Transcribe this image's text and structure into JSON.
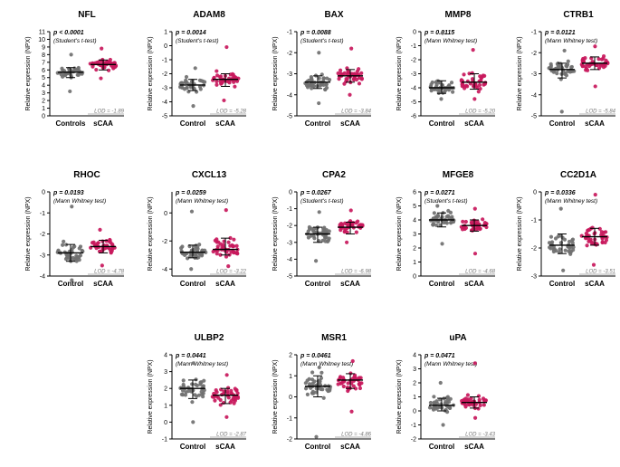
{
  "figure": {
    "ylabel": "Relative expression (NPX)",
    "group_colors": {
      "control": "#707070",
      "scaa": "#c8185c"
    }
  },
  "chart_data": [
    {
      "type": "scatter",
      "title": "NFL",
      "p_value": "p < 0.0001",
      "test": "(Student's t-test)",
      "categories": [
        "Controls",
        "sCAA"
      ],
      "ylabel": "Relative expression (NPX)",
      "ylim": [
        0,
        11
      ],
      "yticks": [
        0,
        1,
        2,
        3,
        4,
        5,
        6,
        7,
        8,
        9,
        10,
        11
      ],
      "lod_label": "LOD = -1.89",
      "series": [
        {
          "name": "Controls",
          "median": 5.7,
          "q1": 5.0,
          "q3": 6.3,
          "min": 3.2,
          "max": 8.0
        },
        {
          "name": "sCAA",
          "median": 6.7,
          "q1": 6.0,
          "q3": 7.3,
          "min": 4.9,
          "max": 8.8
        }
      ]
    },
    {
      "type": "scatter",
      "title": "ADAM8",
      "p_value": "p = 0.0014",
      "test": "(Student's t-test)",
      "categories": [
        "Control",
        "sCAA"
      ],
      "ylabel": "Relative expression (NPX)",
      "ylim": [
        -5,
        1
      ],
      "yticks": [
        -5,
        -4,
        -3,
        -2,
        -1,
        0,
        1
      ],
      "lod_label": "LOD = -5.28",
      "series": [
        {
          "name": "Control",
          "median": -2.8,
          "q1": -3.2,
          "q3": -2.4,
          "min": -4.3,
          "max": -1.6
        },
        {
          "name": "sCAA",
          "median": -2.4,
          "q1": -2.9,
          "q3": -2.0,
          "min": -3.9,
          "max": -0.1
        }
      ]
    },
    {
      "type": "scatter",
      "title": "BAX",
      "p_value": "p = 0.0088",
      "test": "(Student's t-test)",
      "categories": [
        "Control",
        "sCAA"
      ],
      "ylabel": "Relative expression (NPX)",
      "ylim": [
        -5,
        -1
      ],
      "yticks": [
        -5,
        -4,
        -3,
        -2,
        -1
      ],
      "lod_label": "LOD = -3.84",
      "series": [
        {
          "name": "Control",
          "median": -3.4,
          "q1": -3.7,
          "q3": -3.1,
          "min": -4.4,
          "max": -2.0
        },
        {
          "name": "sCAA",
          "median": -3.1,
          "q1": -3.4,
          "q3": -2.8,
          "min": -4.0,
          "max": -1.8
        }
      ]
    },
    {
      "type": "scatter",
      "title": "MMP8",
      "p_value": "p = 0.0115",
      "test": "(Mann Whitney test)",
      "categories": [
        "Control",
        "sCAA"
      ],
      "ylabel": "Relative expression (NPX)",
      "ylim": [
        -6,
        0
      ],
      "yticks": [
        -6,
        -5,
        -4,
        -3,
        -2,
        -1,
        0
      ],
      "lod_label": "LOD = -5.20",
      "series": [
        {
          "name": "Control",
          "median": -4.0,
          "q1": -4.4,
          "q3": -3.5,
          "min": -4.8,
          "max": -0.1
        },
        {
          "name": "sCAA",
          "median": -3.6,
          "q1": -4.1,
          "q3": -3.0,
          "min": -4.8,
          "max": -1.3
        }
      ]
    },
    {
      "type": "scatter",
      "title": "CTRB1",
      "p_value": "p = 0.0121",
      "test": "(Mann Whitney test)",
      "categories": [
        "Control",
        "sCAA"
      ],
      "ylabel": "Relative expression (NPX)",
      "ylim": [
        -5,
        -1
      ],
      "yticks": [
        -5,
        -4,
        -3,
        -2,
        -1
      ],
      "lod_label": "LOD = -5.84",
      "series": [
        {
          "name": "Control",
          "median": -2.8,
          "q1": -3.2,
          "q3": -2.5,
          "min": -4.8,
          "max": -1.9
        },
        {
          "name": "sCAA",
          "median": -2.5,
          "q1": -2.8,
          "q3": -2.2,
          "min": -3.6,
          "max": -1.7
        }
      ]
    },
    {
      "type": "scatter",
      "title": "RHOC",
      "p_value": "p = 0.0193",
      "test": "(Mann Whitney test)",
      "categories": [
        "Control",
        "sCAA"
      ],
      "ylabel": "Relative expression (NPX)",
      "ylim": [
        -4,
        0
      ],
      "yticks": [
        -4,
        -3,
        -2,
        -1,
        0
      ],
      "lod_label": "LOD = -4.78",
      "series": [
        {
          "name": "Control",
          "median": -2.9,
          "q1": -3.3,
          "q3": -2.5,
          "min": -4.2,
          "max": -0.7
        },
        {
          "name": "sCAA",
          "median": -2.6,
          "q1": -2.9,
          "q3": -2.3,
          "min": -3.5,
          "max": -1.8
        }
      ]
    },
    {
      "type": "scatter",
      "title": "CXCL13",
      "p_value": "p = 0.0259",
      "test": "(Mann Whitney test)",
      "categories": [
        "Control",
        "sCAA"
      ],
      "ylabel": "Relative expression (NPX)",
      "ylim": [
        -4.5,
        1.5
      ],
      "yticks": [
        -4,
        -2,
        0
      ],
      "lod_label": "LOD = -3.22",
      "series": [
        {
          "name": "Control",
          "median": -2.8,
          "q1": -3.2,
          "q3": -2.3,
          "min": -4.0,
          "max": 0.1
        },
        {
          "name": "sCAA",
          "median": -2.6,
          "q1": -3.0,
          "q3": -1.8,
          "min": -3.8,
          "max": 0.2
        }
      ]
    },
    {
      "type": "scatter",
      "title": "CPA2",
      "p_value": "p = 0.0267",
      "test": "(Student's t-test)",
      "categories": [
        "Control",
        "sCAA"
      ],
      "ylabel": "Relative expression (NPX)",
      "ylim": [
        -5,
        0
      ],
      "yticks": [
        -5,
        -4,
        -3,
        -2,
        -1,
        0
      ],
      "lod_label": "LOD = -6.98",
      "series": [
        {
          "name": "Control",
          "median": -2.5,
          "q1": -3.0,
          "q3": -2.1,
          "min": -4.1,
          "max": -1.2
        },
        {
          "name": "sCAA",
          "median": -2.1,
          "q1": -2.5,
          "q3": -1.8,
          "min": -3.0,
          "max": -1.1
        }
      ]
    },
    {
      "type": "scatter",
      "title": "MFGE8",
      "p_value": "p = 0.0271",
      "test": "(Student's t-test)",
      "categories": [
        "Control",
        "sCAA"
      ],
      "ylabel": "Relative expression (NPX)",
      "ylim": [
        0,
        6
      ],
      "yticks": [
        0,
        1,
        2,
        3,
        4,
        5,
        6
      ],
      "lod_label": "LOD = -4.68",
      "series": [
        {
          "name": "Control",
          "median": 4.0,
          "q1": 3.5,
          "q3": 4.5,
          "min": 2.3,
          "max": 5.0
        },
        {
          "name": "sCAA",
          "median": 3.6,
          "q1": 3.2,
          "q3": 4.0,
          "min": 1.6,
          "max": 4.8
        }
      ]
    },
    {
      "type": "scatter",
      "title": "CC2D1A",
      "p_value": "p = 0.0336",
      "test": "(Mann Whitney test)",
      "categories": [
        "Control",
        "sCAA"
      ],
      "ylabel": "Relative expression (NPX)",
      "ylim": [
        -3,
        0
      ],
      "yticks": [
        -3,
        -2,
        -1,
        0
      ],
      "lod_label": "LOD = -3.51",
      "series": [
        {
          "name": "Control",
          "median": -1.9,
          "q1": -2.2,
          "q3": -1.5,
          "min": -2.8,
          "max": -0.6
        },
        {
          "name": "sCAA",
          "median": -1.6,
          "q1": -1.9,
          "q3": -1.3,
          "min": -2.6,
          "max": -0.1
        }
      ]
    },
    {
      "type": "scatter",
      "title": "ULBP2",
      "p_value": "p = 0.0441",
      "test": "(Mann Whitney test)",
      "categories": [
        "Control",
        "sCAA"
      ],
      "ylabel": "Relative expression (NPX)",
      "ylim": [
        -1,
        4
      ],
      "yticks": [
        -1,
        0,
        1,
        2,
        3,
        4
      ],
      "lod_label": "LOD = -2.87",
      "series": [
        {
          "name": "Control",
          "median": 2.0,
          "q1": 1.4,
          "q3": 2.5,
          "min": 0.0,
          "max": 3.5
        },
        {
          "name": "sCAA",
          "median": 1.6,
          "q1": 1.1,
          "q3": 2.0,
          "min": 0.3,
          "max": 2.8
        }
      ]
    },
    {
      "type": "scatter",
      "title": "MSR1",
      "p_value": "p = 0.0461",
      "test": "(Mann Whitney test)",
      "categories": [
        "Control",
        "sCAA"
      ],
      "ylabel": "Relative expression (NPX)",
      "ylim": [
        -2,
        2
      ],
      "yticks": [
        -2,
        -1,
        0,
        1,
        2
      ],
      "lod_label": "LOD = -4.86",
      "series": [
        {
          "name": "Control",
          "median": 0.5,
          "q1": 0.0,
          "q3": 1.0,
          "min": -1.9,
          "max": 1.4
        },
        {
          "name": "sCAA",
          "median": 0.8,
          "q1": 0.4,
          "q3": 1.1,
          "min": -0.7,
          "max": 1.7
        }
      ]
    },
    {
      "type": "scatter",
      "title": "uPA",
      "p_value": "p = 0.0471",
      "test": "(Mann Whitney test)",
      "categories": [
        "Control",
        "sCAA"
      ],
      "ylabel": "Relative expression (NPX)",
      "ylim": [
        -2,
        4
      ],
      "yticks": [
        -2,
        -1,
        0,
        1,
        2,
        3,
        4
      ],
      "lod_label": "LOD = -3.43",
      "series": [
        {
          "name": "Control",
          "median": 0.4,
          "q1": 0.0,
          "q3": 0.9,
          "min": -1.0,
          "max": 2.0
        },
        {
          "name": "sCAA",
          "median": 0.6,
          "q1": 0.2,
          "q3": 1.0,
          "min": -0.5,
          "max": 3.4
        }
      ]
    }
  ]
}
